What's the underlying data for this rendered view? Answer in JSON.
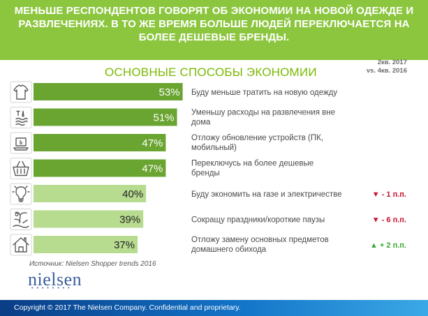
{
  "header": {
    "title": "МЕНЬШЕ РЕСПОНДЕНТОВ ГОВОРЯТ ОБ ЭКОНОМИИ НА НОВОЙ ОДЕЖДЕ И РАЗВЛЕЧЕНИЯХ. В ТО ЖЕ ВРЕМЯ БОЛЬШЕ ЛЮДЕЙ ПЕРЕКЛЮЧАЕТСЯ НА БОЛЕЕ ДЕШЕВЫЕ БРЕНДЫ."
  },
  "chart_data": {
    "type": "bar",
    "orientation": "horizontal",
    "title": "ОСНОВНЫЕ СПОСОБЫ ЭКОНОМИИ",
    "period_line1": "2кв. 2017",
    "period_line2": "vs. 4кв. 2016",
    "value_suffix": "%",
    "xlim": [
      0,
      100
    ],
    "categories": [
      "Буду меньше тратить на новую одежду",
      "Уменьшу расходы на развлечения вне дома",
      "Отложу обновление устройств (ПК, мобильный)",
      "Переключусь на более дешевые бренды",
      "Буду экономить на газе и электричестве",
      "Сокращу праздники/короткие паузы",
      "Отложу замену основных предметов домашнего обихода"
    ],
    "category_lines": [
      [
        "Буду меньше тратить на новую одежду"
      ],
      [
        "Уменьшу расходы на развлечения вне",
        "дома"
      ],
      [
        "Отложу обновление устройств (ПК,",
        "мобильный)"
      ],
      [
        "Переключусь на более дешевые",
        "бренды"
      ],
      [
        "Буду экономить на газе и электричестве"
      ],
      [
        "Сокращу праздники/короткие паузы"
      ],
      [
        "Отложу замену основных предметов",
        "домашнего обихода"
      ]
    ],
    "values": [
      53,
      51,
      47,
      47,
      40,
      39,
      37
    ],
    "value_labels": [
      "53%",
      "51%",
      "47%",
      "47%",
      "40%",
      "39%",
      "37%"
    ],
    "changes": [
      "",
      "",
      "",
      "",
      "▼ - 1 п.п.",
      "▼ - 6 п.п.",
      "▲ + 2 п.п."
    ],
    "change_directions": [
      "",
      "",
      "",
      "",
      "down",
      "down",
      "up"
    ],
    "icons": [
      "tshirt-icon",
      "cocktail-icon",
      "laptop-icon",
      "basket-icon",
      "lightbulb-icon",
      "beach-icon",
      "house-icon"
    ],
    "colors": {
      "bar_dark": "#6aa431",
      "bar_light": "#b7db8f",
      "label_on_dark": "#ffffff",
      "label_on_light": "#222222",
      "down": "#c8102e",
      "up": "#3aa935",
      "icon_stroke": "#5a5a5a"
    }
  },
  "source": "Источник: Nielsen Shopper trends 2016",
  "logo": "nielsen",
  "footer": "Copyright © 2017 The Nielsen Company. Confidential and proprietary."
}
